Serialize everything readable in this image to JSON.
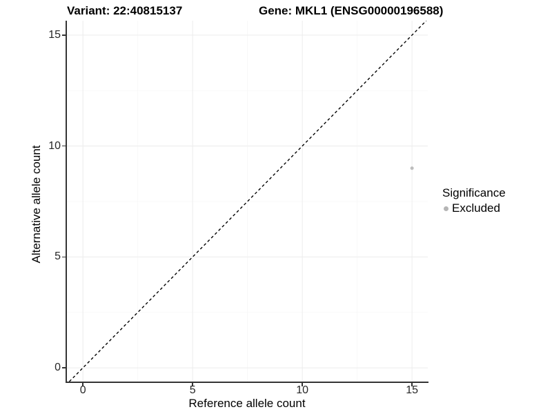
{
  "chart_data": {
    "type": "scatter",
    "titles": {
      "variant": "Variant: 22:40815137",
      "gene": "Gene: MKL1 (ENSG00000196588)"
    },
    "xlabel": "Reference allele count",
    "ylabel": "Alternative allele count",
    "xlim": [
      -0.76,
      15.72
    ],
    "ylim": [
      -0.62,
      15.65
    ],
    "x_ticks": [
      0,
      5,
      10,
      15
    ],
    "y_ticks": [
      0,
      5,
      10,
      15
    ],
    "x_minor_ticks": [
      2.5,
      7.5,
      12.5
    ],
    "y_minor_ticks": [
      2.5,
      7.5,
      12.5
    ],
    "grid": "major+minor, very light grey on white panel",
    "series": [
      {
        "name": "Excluded",
        "color": "#bdbdbd",
        "points": [
          {
            "x": 15,
            "y": 9
          }
        ]
      }
    ],
    "reference_line": {
      "kind": "identity y=x",
      "style": "dashed",
      "color": "#000000"
    },
    "legend": {
      "position": "right",
      "title": "Significance",
      "items": [
        {
          "label": "Excluded",
          "color": "#b5b5b5"
        }
      ]
    },
    "colors": {
      "grid_major": "#ececec",
      "grid_minor": "#f6f6f6",
      "axis_line": "#333333",
      "tick_text": "#262626",
      "title_text": "#000000"
    }
  }
}
